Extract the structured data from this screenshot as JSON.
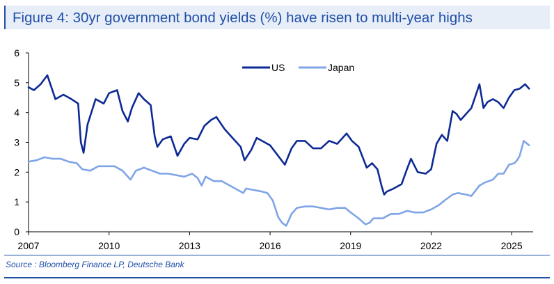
{
  "header": {
    "title": "Figure 4: 30yr government bond yields (%) have risen to multi-year highs"
  },
  "footer": {
    "source": "Source : Bloomberg Finance LP, Deutsche Bank"
  },
  "colors": {
    "us": "#0d2a94",
    "japan": "#7fa5e6",
    "accent": "#1f4fa8"
  },
  "chart_data": {
    "type": "line",
    "title": "Figure 4: 30yr government bond yields (%) have risen to multi-year highs",
    "xlabel": "",
    "ylabel": "",
    "xlim": [
      2007,
      2025.8
    ],
    "ylim": [
      0,
      6
    ],
    "xticks": [
      2007,
      2010,
      2013,
      2016,
      2019,
      2022,
      2025
    ],
    "yticks": [
      0,
      1,
      2,
      3,
      4,
      5,
      6
    ],
    "legend_position": "top-center",
    "grid": false,
    "series": [
      {
        "name": "US",
        "color": "#0d2a94",
        "x": [
          2007.0,
          2007.2,
          2007.45,
          2007.7,
          2008.0,
          2008.3,
          2008.6,
          2008.85,
          2008.95,
          2009.05,
          2009.2,
          2009.5,
          2009.8,
          2010.0,
          2010.3,
          2010.5,
          2010.7,
          2010.85,
          2011.1,
          2011.3,
          2011.55,
          2011.7,
          2011.8,
          2012.0,
          2012.3,
          2012.55,
          2012.8,
          2013.0,
          2013.3,
          2013.55,
          2013.8,
          2014.0,
          2014.3,
          2014.6,
          2014.9,
          2015.05,
          2015.3,
          2015.5,
          2015.8,
          2016.0,
          2016.3,
          2016.55,
          2016.8,
          2017.0,
          2017.3,
          2017.6,
          2017.9,
          2018.2,
          2018.5,
          2018.85,
          2019.05,
          2019.3,
          2019.6,
          2019.8,
          2020.0,
          2020.15,
          2020.25,
          2020.35,
          2020.6,
          2020.9,
          2021.1,
          2021.25,
          2021.5,
          2021.8,
          2022.0,
          2022.2,
          2022.4,
          2022.6,
          2022.8,
          2022.95,
          2023.1,
          2023.3,
          2023.5,
          2023.8,
          2023.95,
          2024.1,
          2024.3,
          2024.5,
          2024.7,
          2024.9,
          2025.1,
          2025.3,
          2025.5,
          2025.65
        ],
        "y": [
          4.85,
          4.75,
          4.95,
          5.25,
          4.45,
          4.6,
          4.45,
          4.3,
          3.0,
          2.65,
          3.6,
          4.45,
          4.3,
          4.65,
          4.75,
          4.05,
          3.7,
          4.15,
          4.65,
          4.45,
          4.25,
          3.2,
          2.85,
          3.1,
          3.2,
          2.55,
          2.95,
          3.15,
          3.1,
          3.55,
          3.75,
          3.85,
          3.45,
          3.15,
          2.85,
          2.4,
          2.75,
          3.15,
          3.0,
          2.9,
          2.55,
          2.25,
          2.8,
          3.05,
          3.05,
          2.8,
          2.8,
          3.05,
          2.95,
          3.3,
          3.05,
          2.85,
          2.15,
          2.3,
          2.1,
          1.55,
          1.25,
          1.35,
          1.45,
          1.6,
          2.1,
          2.45,
          2.0,
          1.95,
          2.1,
          2.95,
          3.25,
          3.05,
          4.05,
          3.95,
          3.75,
          3.95,
          4.15,
          4.95,
          4.15,
          4.35,
          4.45,
          4.35,
          4.15,
          4.5,
          4.75,
          4.8,
          4.95,
          4.8
        ]
      },
      {
        "name": "Japan",
        "color": "#7fa5e6",
        "x": [
          2007.0,
          2007.3,
          2007.6,
          2007.9,
          2008.2,
          2008.5,
          2008.8,
          2009.0,
          2009.3,
          2009.6,
          2009.9,
          2010.2,
          2010.5,
          2010.8,
          2011.0,
          2011.3,
          2011.6,
          2011.9,
          2012.2,
          2012.5,
          2012.8,
          2013.1,
          2013.3,
          2013.45,
          2013.6,
          2013.9,
          2014.2,
          2014.5,
          2014.8,
          2015.0,
          2015.1,
          2015.4,
          2015.7,
          2015.9,
          2016.1,
          2016.3,
          2016.45,
          2016.6,
          2016.8,
          2017.0,
          2017.3,
          2017.6,
          2017.9,
          2018.2,
          2018.5,
          2018.8,
          2019.0,
          2019.3,
          2019.55,
          2019.7,
          2019.85,
          2020.0,
          2020.2,
          2020.5,
          2020.8,
          2021.1,
          2021.4,
          2021.7,
          2022.0,
          2022.3,
          2022.5,
          2022.8,
          2023.0,
          2023.3,
          2023.5,
          2023.8,
          2024.0,
          2024.3,
          2024.5,
          2024.7,
          2024.9,
          2025.1,
          2025.2,
          2025.3,
          2025.45,
          2025.65
        ],
        "y": [
          2.35,
          2.4,
          2.5,
          2.45,
          2.45,
          2.35,
          2.3,
          2.1,
          2.05,
          2.2,
          2.2,
          2.2,
          2.05,
          1.75,
          2.05,
          2.15,
          2.05,
          1.95,
          1.95,
          1.9,
          1.85,
          1.95,
          1.8,
          1.55,
          1.85,
          1.7,
          1.7,
          1.55,
          1.4,
          1.3,
          1.45,
          1.4,
          1.35,
          1.3,
          1.05,
          0.5,
          0.3,
          0.2,
          0.6,
          0.8,
          0.85,
          0.85,
          0.8,
          0.75,
          0.8,
          0.8,
          0.65,
          0.45,
          0.25,
          0.3,
          0.45,
          0.45,
          0.45,
          0.6,
          0.6,
          0.7,
          0.65,
          0.65,
          0.75,
          0.9,
          1.05,
          1.25,
          1.3,
          1.25,
          1.2,
          1.55,
          1.65,
          1.75,
          1.95,
          1.95,
          2.25,
          2.3,
          2.4,
          2.55,
          3.05,
          2.9
        ]
      }
    ]
  }
}
